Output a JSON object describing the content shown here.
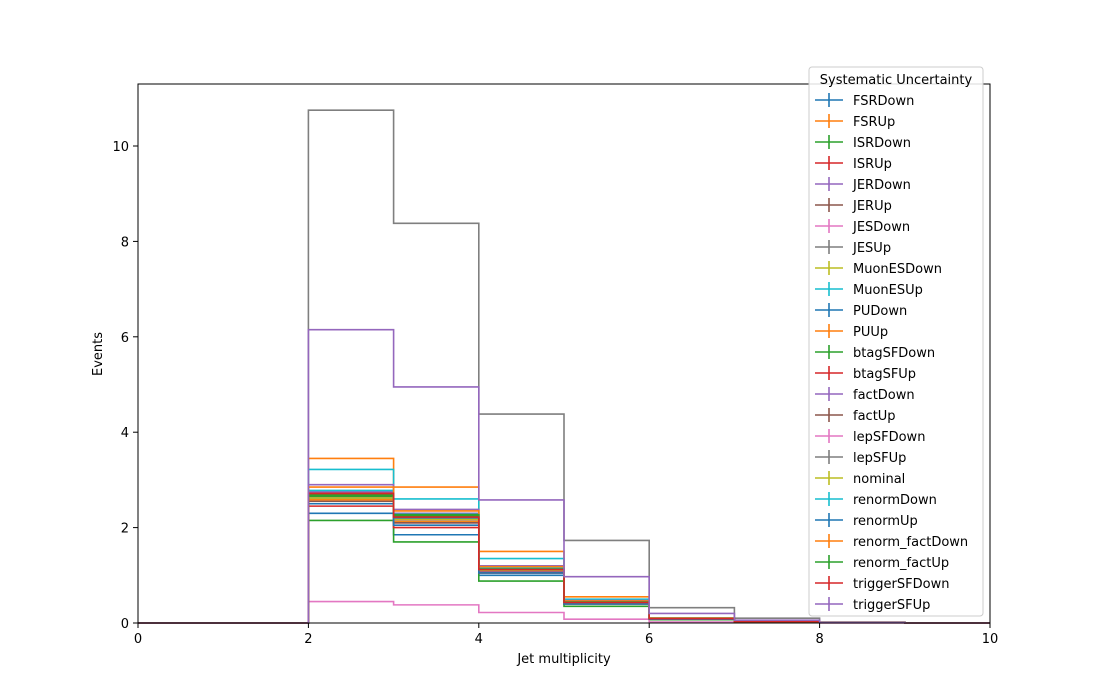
{
  "chart_data": {
    "type": "line",
    "style": "step-histogram",
    "xlabel": "Jet multiplicity",
    "ylabel": "Events",
    "xlim": [
      0,
      10
    ],
    "ylim": [
      0,
      11.3
    ],
    "x_ticks": [
      "0",
      "2",
      "4",
      "6",
      "8",
      "10"
    ],
    "y_ticks": [
      "0",
      "2",
      "4",
      "6",
      "8",
      "10"
    ],
    "bin_edges": [
      0,
      1,
      2,
      3,
      4,
      5,
      6,
      7,
      8,
      9,
      10
    ],
    "legend": {
      "title": "Systematic Uncertainty",
      "position": "upper-right"
    },
    "grid": false,
    "series": [
      {
        "name": "FSRDown",
        "color": "#1f77b4",
        "values": [
          0,
          0,
          2.3,
          1.85,
          1.0,
          0.4,
          0.08,
          0.03,
          0.01,
          0
        ]
      },
      {
        "name": "FSRUp",
        "color": "#ff7f0e",
        "values": [
          0,
          0,
          3.45,
          2.85,
          1.5,
          0.55,
          0.11,
          0.04,
          0.01,
          0
        ]
      },
      {
        "name": "ISRDown",
        "color": "#2ca02c",
        "values": [
          0,
          0,
          2.15,
          1.7,
          0.88,
          0.35,
          0.07,
          0.02,
          0.01,
          0
        ]
      },
      {
        "name": "ISRUp",
        "color": "#d62728",
        "values": [
          0,
          0,
          2.45,
          2.0,
          1.05,
          0.42,
          0.09,
          0.03,
          0.01,
          0
        ]
      },
      {
        "name": "JERDown",
        "color": "#9467bd",
        "values": [
          0,
          0,
          2.75,
          2.3,
          1.15,
          0.45,
          0.1,
          0.03,
          0.01,
          0
        ]
      },
      {
        "name": "JERUp",
        "color": "#8c564b",
        "values": [
          0,
          0,
          2.6,
          2.15,
          1.1,
          0.42,
          0.09,
          0.03,
          0.01,
          0
        ]
      },
      {
        "name": "JESDown",
        "color": "#e377c2",
        "values": [
          0,
          0,
          0.45,
          0.38,
          0.22,
          0.08,
          0.02,
          0.01,
          0,
          0
        ]
      },
      {
        "name": "JESUp",
        "color": "#7f7f7f",
        "values": [
          0,
          0,
          10.75,
          8.38,
          4.38,
          1.73,
          0.32,
          0.1,
          0.02,
          0
        ]
      },
      {
        "name": "MuonESDown",
        "color": "#bcbd22",
        "values": [
          0,
          0,
          2.6,
          2.15,
          1.1,
          0.42,
          0.09,
          0.03,
          0.01,
          0
        ]
      },
      {
        "name": "MuonESUp",
        "color": "#17becf",
        "values": [
          0,
          0,
          3.22,
          2.6,
          1.35,
          0.5,
          0.1,
          0.03,
          0.01,
          0
        ]
      },
      {
        "name": "PUDown",
        "color": "#1f77b4",
        "values": [
          0,
          0,
          2.62,
          2.2,
          1.12,
          0.43,
          0.09,
          0.03,
          0.01,
          0
        ]
      },
      {
        "name": "PUUp",
        "color": "#ff7f0e",
        "values": [
          0,
          0,
          2.58,
          2.12,
          1.08,
          0.41,
          0.09,
          0.03,
          0.01,
          0
        ]
      },
      {
        "name": "btagSFDown",
        "color": "#2ca02c",
        "values": [
          0,
          0,
          2.65,
          2.25,
          1.12,
          0.44,
          0.09,
          0.03,
          0.01,
          0
        ]
      },
      {
        "name": "btagSFUp",
        "color": "#d62728",
        "values": [
          0,
          0,
          2.7,
          2.1,
          1.05,
          0.4,
          0.09,
          0.03,
          0.01,
          0
        ]
      },
      {
        "name": "factDown",
        "color": "#9467bd",
        "values": [
          0,
          0,
          2.9,
          2.38,
          1.2,
          0.47,
          0.1,
          0.03,
          0.01,
          0
        ]
      },
      {
        "name": "factUp",
        "color": "#8c564b",
        "values": [
          0,
          0,
          2.55,
          2.1,
          1.08,
          0.41,
          0.09,
          0.03,
          0.01,
          0
        ]
      },
      {
        "name": "lepSFDown",
        "color": "#e377c2",
        "values": [
          0,
          0,
          2.62,
          2.16,
          1.1,
          0.42,
          0.09,
          0.03,
          0.01,
          0
        ]
      },
      {
        "name": "lepSFUp",
        "color": "#7f7f7f",
        "values": [
          0,
          0,
          2.62,
          2.17,
          1.11,
          0.42,
          0.09,
          0.03,
          0.01,
          0
        ]
      },
      {
        "name": "nominal",
        "color": "#bcbd22",
        "values": [
          0,
          0,
          2.62,
          2.17,
          1.11,
          0.42,
          0.09,
          0.03,
          0.01,
          0
        ]
      },
      {
        "name": "renormDown",
        "color": "#17becf",
        "values": [
          0,
          0,
          2.78,
          2.28,
          1.16,
          0.45,
          0.1,
          0.03,
          0.01,
          0
        ]
      },
      {
        "name": "renormUp",
        "color": "#1f77b4",
        "values": [
          0,
          0,
          2.5,
          2.05,
          1.05,
          0.4,
          0.08,
          0.03,
          0.01,
          0
        ]
      },
      {
        "name": "renorm_factDown",
        "color": "#ff7f0e",
        "values": [
          0,
          0,
          2.85,
          2.35,
          1.18,
          0.46,
          0.1,
          0.03,
          0.01,
          0
        ]
      },
      {
        "name": "renorm_factUp",
        "color": "#2ca02c",
        "values": [
          0,
          0,
          2.68,
          2.27,
          1.13,
          0.44,
          0.09,
          0.03,
          0.01,
          0
        ]
      },
      {
        "name": "triggerSFDown",
        "color": "#d62728",
        "values": [
          0,
          0,
          2.72,
          2.22,
          1.12,
          0.43,
          0.09,
          0.03,
          0.01,
          0
        ]
      },
      {
        "name": "triggerSFUp",
        "color": "#9467bd",
        "values": [
          0,
          0,
          6.15,
          4.95,
          2.58,
          0.97,
          0.2,
          0.06,
          0.01,
          0
        ]
      }
    ]
  }
}
